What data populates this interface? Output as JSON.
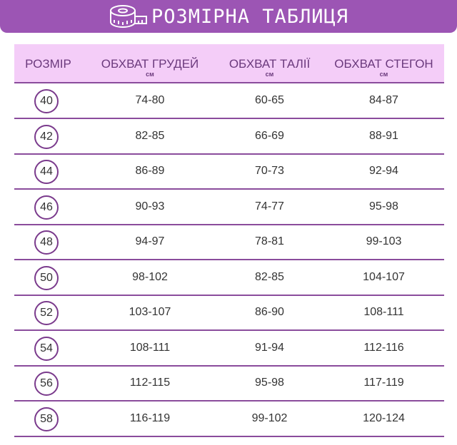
{
  "title": "РОЗМІРНА ТАБЛИЦЯ",
  "headers": [
    {
      "label": "РОЗМІР",
      "unit": ""
    },
    {
      "label": "ОБХВАТ ГРУДЕЙ",
      "unit": "см"
    },
    {
      "label": "ОБХВАТ ТАЛІЇ",
      "unit": "см"
    },
    {
      "label": "ОБХВАТ СТЕГОН",
      "unit": "см"
    }
  ],
  "rows": [
    [
      "40",
      "74-80",
      "60-65",
      "84-87"
    ],
    [
      "42",
      "82-85",
      "66-69",
      "88-91"
    ],
    [
      "44",
      "86-89",
      "70-73",
      "92-94"
    ],
    [
      "46",
      "90-93",
      "74-77",
      "95-98"
    ],
    [
      "48",
      "94-97",
      "78-81",
      "99-103"
    ],
    [
      "50",
      "98-102",
      "82-85",
      "104-107"
    ],
    [
      "52",
      "103-107",
      "86-90",
      "108-111"
    ],
    [
      "54",
      "108-111",
      "91-94",
      "112-116"
    ],
    [
      "56",
      "112-115",
      "95-98",
      "117-119"
    ],
    [
      "58",
      "116-119",
      "99-102",
      "120-124"
    ]
  ],
  "colors": {
    "banner": "#9c55b4",
    "header_bg": "#f4cdf8",
    "line": "#8a4c9c"
  },
  "icon": "measuring-tape-icon"
}
